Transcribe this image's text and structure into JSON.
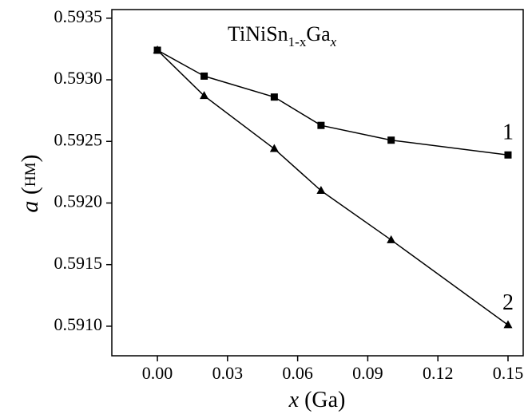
{
  "chart_data": {
    "type": "line",
    "title_parts": [
      "TiNiSn",
      "1-x",
      "Ga",
      "x"
    ],
    "xlabel_parts": [
      "x",
      "(Ga)"
    ],
    "ylabel_parts": [
      "a",
      "(",
      "HM",
      ")"
    ],
    "x": [
      0,
      0.02,
      0.05,
      0.07,
      0.1,
      0.15
    ],
    "series": [
      {
        "name": "1",
        "color": "#000000",
        "marker": "square",
        "values": [
          0.59324,
          0.59303,
          0.59286,
          0.59263,
          0.59251,
          0.59239
        ]
      },
      {
        "name": "2",
        "color": "#000000",
        "marker": "triangle",
        "values": [
          0.59324,
          0.59287,
          0.59244,
          0.5921,
          0.5917,
          0.59101
        ]
      }
    ],
    "xlim": [
      -0.0195,
      0.1565
    ],
    "ylim": [
      0.59076,
      0.59357
    ],
    "xticks": [
      {
        "value": 0,
        "label": "0.00"
      },
      {
        "value": 0.03,
        "label": "0.03"
      },
      {
        "value": 0.06,
        "label": "0.06"
      },
      {
        "value": 0.09,
        "label": "0.09"
      },
      {
        "value": 0.12,
        "label": "0.12"
      },
      {
        "value": 0.15,
        "label": "0.15"
      }
    ],
    "yticks": [
      {
        "value": 0.591,
        "label": "0.5910"
      },
      0.5915,
      {
        "value": 0.592,
        "label": "0.5920"
      },
      0.5925,
      {
        "value": 0.593,
        "label": "0.5930"
      },
      0.5935
    ]
  }
}
